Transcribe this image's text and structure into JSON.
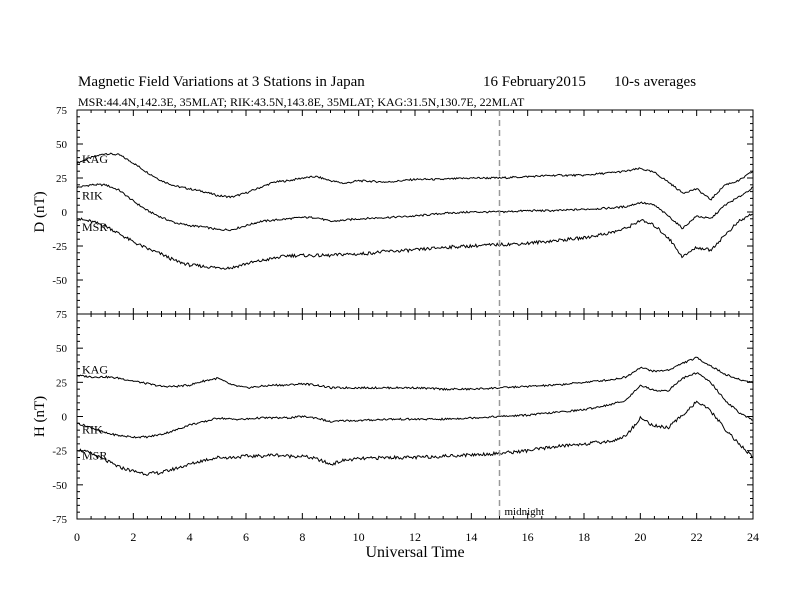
{
  "chart_data": {
    "type": "line",
    "title": "Magnetic Field Variations at 3 Stations in Japan",
    "date": "16 February2015",
    "averaging": "10-s averages",
    "subtitle": "MSR:44.4N,142.3E, 35MLAT;  RIK:43.5N,143.8E, 35MLAT;  KAG:31.5N,130.7E, 22MLAT",
    "xlabel": "Universal Time",
    "xlim": [
      0,
      24
    ],
    "xticks": [
      0,
      2,
      4,
      6,
      8,
      10,
      12,
      14,
      16,
      18,
      20,
      22,
      24
    ],
    "midnight_marker": {
      "x": 15,
      "label": "midnight"
    },
    "panels": [
      {
        "ylabel": "D (nT)",
        "ylim": [
          -75,
          75
        ],
        "yticks": [
          -75,
          -50,
          -25,
          0,
          25,
          50,
          75
        ],
        "series": [
          {
            "name": "KAG",
            "x": [
              0,
              0.5,
              1,
              1.5,
              2,
              2.5,
              3,
              3.5,
              4,
              4.5,
              5,
              5.5,
              6,
              6.5,
              7,
              7.5,
              8,
              8.5,
              9,
              9.5,
              10,
              11,
              12,
              13,
              14,
              15,
              16,
              17,
              18,
              19,
              19.5,
              20,
              20.5,
              21,
              21.5,
              22,
              22.5,
              23,
              23.5,
              24
            ],
            "y": [
              36,
              40,
              43,
              42,
              36,
              29,
              23,
              19,
              17,
              15,
              12,
              11,
              14,
              18,
              22,
              23,
              25,
              26,
              23,
              21,
              23,
              22,
              24,
              24,
              25,
              25,
              26,
              27,
              27,
              29,
              30,
              32,
              29,
              22,
              14,
              17,
              9,
              20,
              23,
              30
            ]
          },
          {
            "name": "RIK",
            "x": [
              0,
              0.5,
              1,
              1.5,
              2,
              2.5,
              3,
              3.5,
              4,
              4.5,
              5,
              5.5,
              6,
              6.5,
              7,
              7.5,
              8,
              8.5,
              9,
              9.5,
              10,
              11,
              12,
              13,
              14,
              15,
              16,
              17,
              18,
              19,
              19.5,
              20,
              20.5,
              21,
              21.5,
              22,
              22.5,
              23,
              23.5,
              24
            ],
            "y": [
              18,
              20,
              20,
              16,
              8,
              1,
              -4,
              -8,
              -10,
              -11,
              -13,
              -13,
              -10,
              -7,
              -6,
              -5,
              -4,
              -4,
              -7,
              -6,
              -5,
              -4,
              -3,
              -1,
              0,
              0,
              1,
              1,
              2,
              3,
              4,
              7,
              5,
              -3,
              -12,
              -3,
              -5,
              5,
              11,
              18
            ]
          },
          {
            "name": "MSR",
            "x": [
              0,
              0.5,
              1,
              1.5,
              2,
              2.5,
              3,
              3.5,
              4,
              4.5,
              5,
              5.5,
              6,
              6.5,
              7,
              7.5,
              8,
              8.5,
              9,
              9.5,
              10,
              11,
              12,
              13,
              14,
              15,
              16,
              17,
              18,
              19,
              19.5,
              20,
              20.5,
              21,
              21.5,
              22,
              22.5,
              23,
              23.5,
              24
            ],
            "y": [
              -5,
              -7,
              -10,
              -16,
              -22,
              -27,
              -31,
              -36,
              -39,
              -40,
              -41,
              -41,
              -38,
              -36,
              -34,
              -32,
              -32,
              -32,
              -32,
              -31,
              -31,
              -29,
              -28,
              -26,
              -25,
              -24,
              -23,
              -21,
              -19,
              -15,
              -12,
              -6,
              -10,
              -19,
              -33,
              -26,
              -28,
              -17,
              -7,
              -1
            ]
          }
        ]
      },
      {
        "ylabel": "H (nT)",
        "ylim": [
          -75,
          75
        ],
        "yticks": [
          -75,
          -50,
          -25,
          0,
          25,
          50,
          75
        ],
        "series": [
          {
            "name": "KAG",
            "x": [
              0,
              0.5,
              1,
              1.5,
              2,
              2.5,
              3,
              3.5,
              4,
              4.5,
              5,
              5.5,
              6,
              6.5,
              7,
              7.5,
              8,
              8.5,
              9,
              9.5,
              10,
              11,
              12,
              13,
              14,
              15,
              16,
              17,
              18,
              19,
              19.5,
              20,
              20.5,
              21,
              21.5,
              22,
              22.5,
              23,
              23.5,
              24
            ],
            "y": [
              30,
              29,
              29,
              28,
              26,
              24,
              22,
              22,
              23,
              26,
              28,
              23,
              21,
              22,
              23,
              23,
              24,
              23,
              21,
              21,
              21,
              21,
              21,
              20,
              20,
              21,
              22,
              23,
              25,
              27,
              29,
              36,
              33,
              34,
              39,
              43,
              37,
              31,
              27,
              25
            ]
          },
          {
            "name": "RIK",
            "x": [
              0,
              0.5,
              1,
              1.5,
              2,
              2.5,
              3,
              3.5,
              4,
              4.5,
              5,
              5.5,
              6,
              6.5,
              7,
              7.5,
              8,
              8.5,
              9,
              9.5,
              10,
              11,
              12,
              13,
              14,
              15,
              16,
              17,
              18,
              19,
              19.5,
              20,
              20.5,
              21,
              21.5,
              22,
              22.5,
              23,
              23.5,
              24
            ],
            "y": [
              -5,
              -8,
              -12,
              -14,
              -15,
              -15,
              -13,
              -10,
              -6,
              -4,
              -1,
              -2,
              -2,
              -1,
              -1,
              -1,
              0,
              -1,
              -4,
              -3,
              -3,
              -2,
              -2,
              -2,
              -1,
              0,
              1,
              3,
              5,
              9,
              12,
              23,
              19,
              19,
              28,
              32,
              25,
              12,
              3,
              -3
            ]
          },
          {
            "name": "MSR",
            "x": [
              0,
              0.5,
              1,
              1.5,
              2,
              2.5,
              3,
              3.5,
              4,
              4.5,
              5,
              5.5,
              6,
              6.5,
              7,
              7.5,
              8,
              8.5,
              9,
              9.5,
              10,
              11,
              12,
              13,
              14,
              15,
              16,
              17,
              18,
              19,
              19.5,
              20,
              20.5,
              21,
              21.5,
              22,
              22.5,
              23,
              23.5,
              24
            ],
            "y": [
              -24,
              -27,
              -32,
              -37,
              -40,
              -42,
              -41,
              -38,
              -35,
              -32,
              -30,
              -30,
              -29,
              -29,
              -28,
              -29,
              -29,
              -31,
              -35,
              -32,
              -31,
              -30,
              -30,
              -29,
              -28,
              -27,
              -25,
              -22,
              -20,
              -18,
              -14,
              -1,
              -7,
              -8,
              1,
              11,
              4,
              -9,
              -20,
              -30
            ]
          }
        ]
      }
    ]
  }
}
